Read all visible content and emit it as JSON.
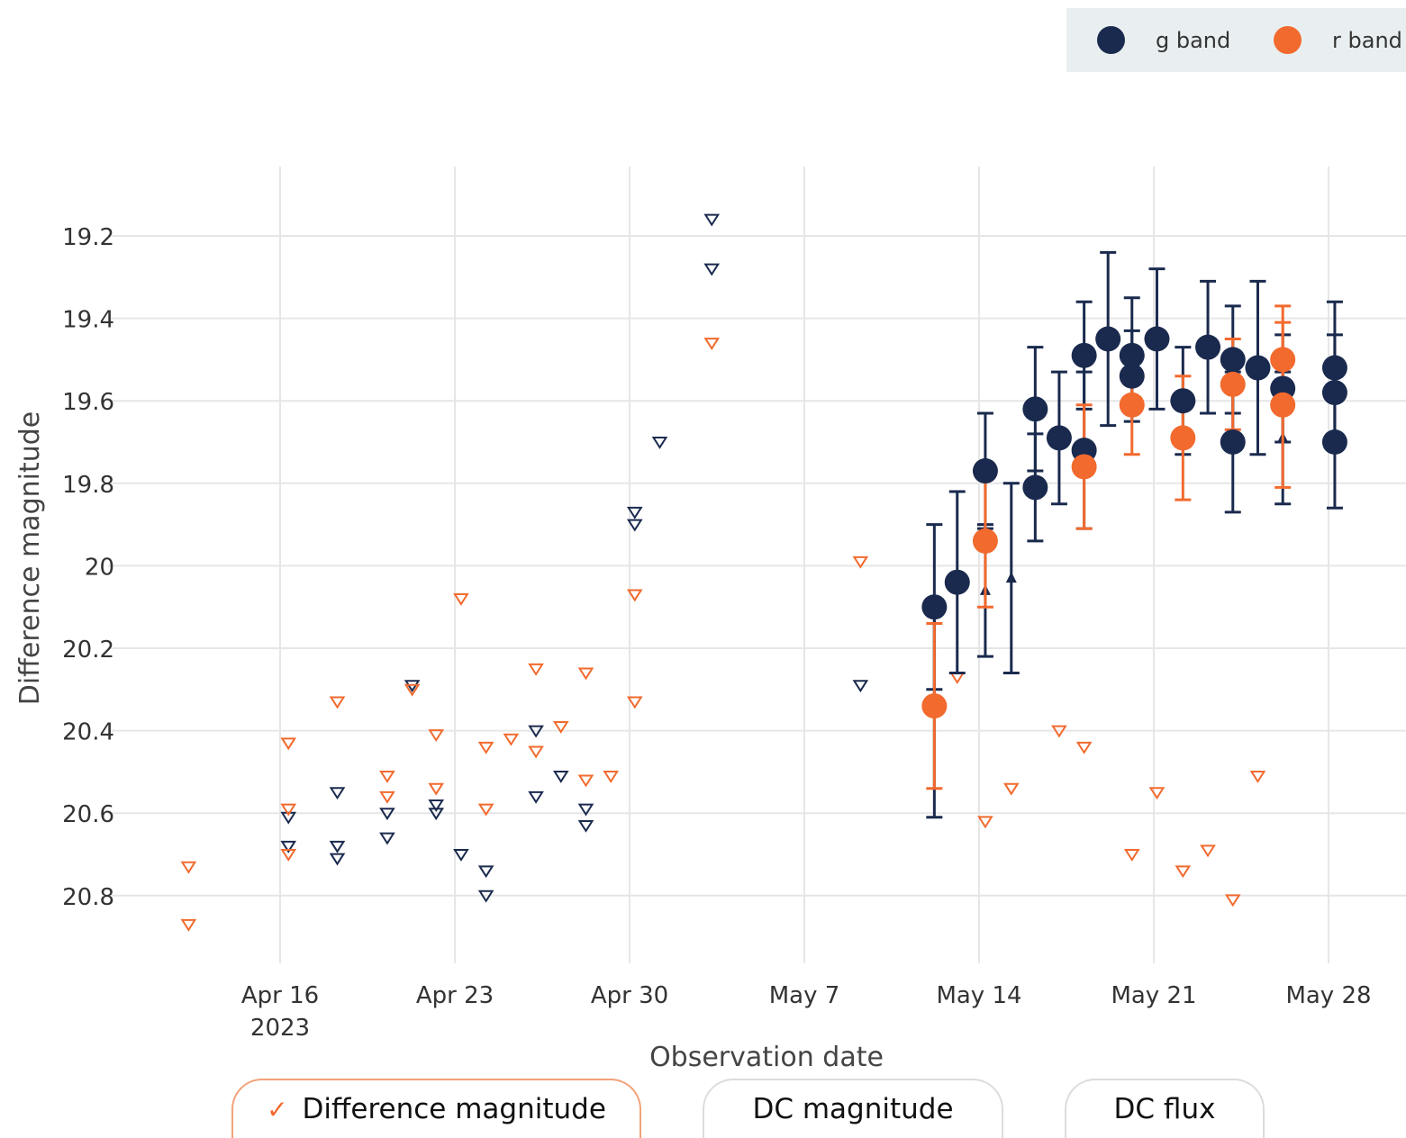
{
  "legend": {
    "g_label": "g band",
    "r_label": "r band"
  },
  "toggles": {
    "diff_mag": "Difference magnitude",
    "dc_mag": "DC magnitude",
    "dc_flux": "DC flux",
    "active": "diff_mag"
  },
  "chart_data": {
    "type": "scatter",
    "xlabel": "Observation date",
    "ylabel": "Difference magnitude",
    "y_reversed": true,
    "ylim": [
      21.0,
      19.05
    ],
    "xlim": [
      "2023-04-12",
      "2023-05-31"
    ],
    "x_ticks": [
      {
        "date": "2023-04-16",
        "label": "Apr 16",
        "sublabel": "2023"
      },
      {
        "date": "2023-04-23",
        "label": "Apr 23"
      },
      {
        "date": "2023-04-30",
        "label": "Apr 30"
      },
      {
        "date": "2023-05-07",
        "label": "May 7"
      },
      {
        "date": "2023-05-14",
        "label": "May 14"
      },
      {
        "date": "2023-05-21",
        "label": "May 21"
      },
      {
        "date": "2023-05-28",
        "label": "May 28"
      }
    ],
    "y_ticks": [
      19.2,
      19.4,
      19.6,
      19.8,
      20,
      20.2,
      20.4,
      20.6,
      20.8
    ],
    "y_tick_labels": [
      "19.2",
      "19.4",
      "19.6",
      "19.8",
      "20",
      "20.2",
      "20.4",
      "20.6",
      "20.8"
    ],
    "grid": true,
    "legend_position": "top-right",
    "series": [
      {
        "name": "g band",
        "color": "#1a2a4e",
        "detections": [
          {
            "x": "2023-05-12 05:00",
            "y": 20.1,
            "err": 0.2
          },
          {
            "x": "2023-05-13 03:00",
            "y": 20.04,
            "err": 0.22
          },
          {
            "x": "2023-05-14 06:00",
            "y": 19.77,
            "err": 0.14
          },
          {
            "x": "2023-05-16 06:00",
            "y": 19.62,
            "err": 0.15
          },
          {
            "x": "2023-05-16 06:00",
            "y": 19.81,
            "err": 0.13
          },
          {
            "x": "2023-05-17 05:00",
            "y": 19.69,
            "err": 0.16
          },
          {
            "x": "2023-05-18 05:00",
            "y": 19.72,
            "err": 0.19
          },
          {
            "x": "2023-05-18 05:00",
            "y": 19.49,
            "err": 0.13
          },
          {
            "x": "2023-05-19 04:00",
            "y": 19.45,
            "err": 0.21
          },
          {
            "x": "2023-05-20 03:00",
            "y": 19.54,
            "err": 0.11
          },
          {
            "x": "2023-05-20 03:00",
            "y": 19.49,
            "err": 0.14
          },
          {
            "x": "2023-05-21 03:00",
            "y": 19.45,
            "err": 0.17
          },
          {
            "x": "2023-05-22 04:00",
            "y": 19.6,
            "err": 0.13
          },
          {
            "x": "2023-05-23 04:00",
            "y": 19.47,
            "err": 0.16
          },
          {
            "x": "2023-05-24 04:00",
            "y": 19.5,
            "err": 0.13
          },
          {
            "x": "2023-05-24 04:00",
            "y": 19.7,
            "err": 0.17
          },
          {
            "x": "2023-05-25 04:00",
            "y": 19.52,
            "err": 0.21
          },
          {
            "x": "2023-05-26 04:00",
            "y": 19.57,
            "err": 0.13
          },
          {
            "x": "2023-05-28 06:00",
            "y": 19.52,
            "err": 0.16
          },
          {
            "x": "2023-05-28 06:00",
            "y": 19.58,
            "err": 0.14
          },
          {
            "x": "2023-05-28 06:00",
            "y": 19.7,
            "err": 0.16
          }
        ],
        "forced": [
          {
            "x": "2023-05-12 05:00",
            "y": 20.35,
            "err": 0.26
          },
          {
            "x": "2023-05-14 06:00",
            "y": 20.06,
            "err": 0.16
          },
          {
            "x": "2023-05-15 07:00",
            "y": 20.03,
            "err": 0.23
          },
          {
            "x": "2023-05-26 04:00",
            "y": 19.69,
            "err": 0.16
          }
        ],
        "upper_limits": [
          {
            "x": "2023-04-16 08:00",
            "y": 20.61
          },
          {
            "x": "2023-04-16 08:00",
            "y": 20.68
          },
          {
            "x": "2023-04-18 07:00",
            "y": 20.55
          },
          {
            "x": "2023-04-18 07:00",
            "y": 20.68
          },
          {
            "x": "2023-04-18 07:00",
            "y": 20.71
          },
          {
            "x": "2023-04-20 07:00",
            "y": 20.6
          },
          {
            "x": "2023-04-20 07:00",
            "y": 20.66
          },
          {
            "x": "2023-04-21 07:00",
            "y": 20.29
          },
          {
            "x": "2023-04-22 06:00",
            "y": 20.58
          },
          {
            "x": "2023-04-22 06:00",
            "y": 20.6
          },
          {
            "x": "2023-04-23 06:00",
            "y": 20.7
          },
          {
            "x": "2023-04-24 06:00",
            "y": 20.74
          },
          {
            "x": "2023-04-24 06:00",
            "y": 20.8
          },
          {
            "x": "2023-04-26 06:00",
            "y": 20.4
          },
          {
            "x": "2023-04-26 06:00",
            "y": 20.56
          },
          {
            "x": "2023-04-27 06:00",
            "y": 20.51
          },
          {
            "x": "2023-04-28 06:00",
            "y": 20.59
          },
          {
            "x": "2023-04-28 06:00",
            "y": 20.63
          },
          {
            "x": "2023-04-30 05:00",
            "y": 19.87
          },
          {
            "x": "2023-04-30 05:00",
            "y": 19.9
          },
          {
            "x": "2023-05-01 05:00",
            "y": 19.7
          },
          {
            "x": "2023-05-03 07:00",
            "y": 19.16
          },
          {
            "x": "2023-05-03 07:00",
            "y": 19.28
          },
          {
            "x": "2023-05-09 06:00",
            "y": 20.29
          }
        ]
      },
      {
        "name": "r band",
        "color": "#f26a2e",
        "detections": [
          {
            "x": "2023-05-12 05:00",
            "y": 20.34,
            "err": 0.2
          },
          {
            "x": "2023-05-14 06:00",
            "y": 19.94,
            "err": 0.16
          },
          {
            "x": "2023-05-18 05:00",
            "y": 19.76,
            "err": 0.15
          },
          {
            "x": "2023-05-20 03:00",
            "y": 19.61,
            "err": 0.12
          },
          {
            "x": "2023-05-22 04:00",
            "y": 19.69,
            "err": 0.15
          },
          {
            "x": "2023-05-24 04:00",
            "y": 19.56,
            "err": 0.11
          },
          {
            "x": "2023-05-26 04:00",
            "y": 19.5,
            "err": 0.13
          },
          {
            "x": "2023-05-26 04:00",
            "y": 19.61,
            "err": 0.2
          }
        ],
        "forced": [],
        "upper_limits": [
          {
            "x": "2023-04-12 08:00",
            "y": 20.73
          },
          {
            "x": "2023-04-12 08:00",
            "y": 20.87
          },
          {
            "x": "2023-04-16 08:00",
            "y": 20.43
          },
          {
            "x": "2023-04-16 08:00",
            "y": 20.59
          },
          {
            "x": "2023-04-16 08:00",
            "y": 20.7
          },
          {
            "x": "2023-04-18 07:00",
            "y": 20.33
          },
          {
            "x": "2023-04-20 07:00",
            "y": 20.51
          },
          {
            "x": "2023-04-20 07:00",
            "y": 20.56
          },
          {
            "x": "2023-04-21 07:00",
            "y": 20.3
          },
          {
            "x": "2023-04-22 06:00",
            "y": 20.41
          },
          {
            "x": "2023-04-22 06:00",
            "y": 20.54
          },
          {
            "x": "2023-04-23 06:00",
            "y": 20.08
          },
          {
            "x": "2023-04-24 06:00",
            "y": 20.44
          },
          {
            "x": "2023-04-24 06:00",
            "y": 20.59
          },
          {
            "x": "2023-04-25 06:00",
            "y": 20.42
          },
          {
            "x": "2023-04-26 06:00",
            "y": 20.25
          },
          {
            "x": "2023-04-26 06:00",
            "y": 20.45
          },
          {
            "x": "2023-04-27 06:00",
            "y": 20.39
          },
          {
            "x": "2023-04-28 06:00",
            "y": 20.26
          },
          {
            "x": "2023-04-28 06:00",
            "y": 20.52
          },
          {
            "x": "2023-04-29 06:00",
            "y": 20.51
          },
          {
            "x": "2023-04-30 05:00",
            "y": 20.07
          },
          {
            "x": "2023-04-30 05:00",
            "y": 20.33
          },
          {
            "x": "2023-05-03 07:00",
            "y": 19.46
          },
          {
            "x": "2023-05-09 06:00",
            "y": 19.99
          },
          {
            "x": "2023-05-13 03:00",
            "y": 20.27
          },
          {
            "x": "2023-05-14 06:00",
            "y": 20.62
          },
          {
            "x": "2023-05-15 07:00",
            "y": 20.54
          },
          {
            "x": "2023-05-17 05:00",
            "y": 20.4
          },
          {
            "x": "2023-05-18 05:00",
            "y": 20.44
          },
          {
            "x": "2023-05-20 03:00",
            "y": 20.7
          },
          {
            "x": "2023-05-21 03:00",
            "y": 20.55
          },
          {
            "x": "2023-05-22 04:00",
            "y": 20.74
          },
          {
            "x": "2023-05-23 04:00",
            "y": 20.69
          },
          {
            "x": "2023-05-24 04:00",
            "y": 20.81
          },
          {
            "x": "2023-05-25 04:00",
            "y": 20.51
          }
        ]
      }
    ]
  }
}
